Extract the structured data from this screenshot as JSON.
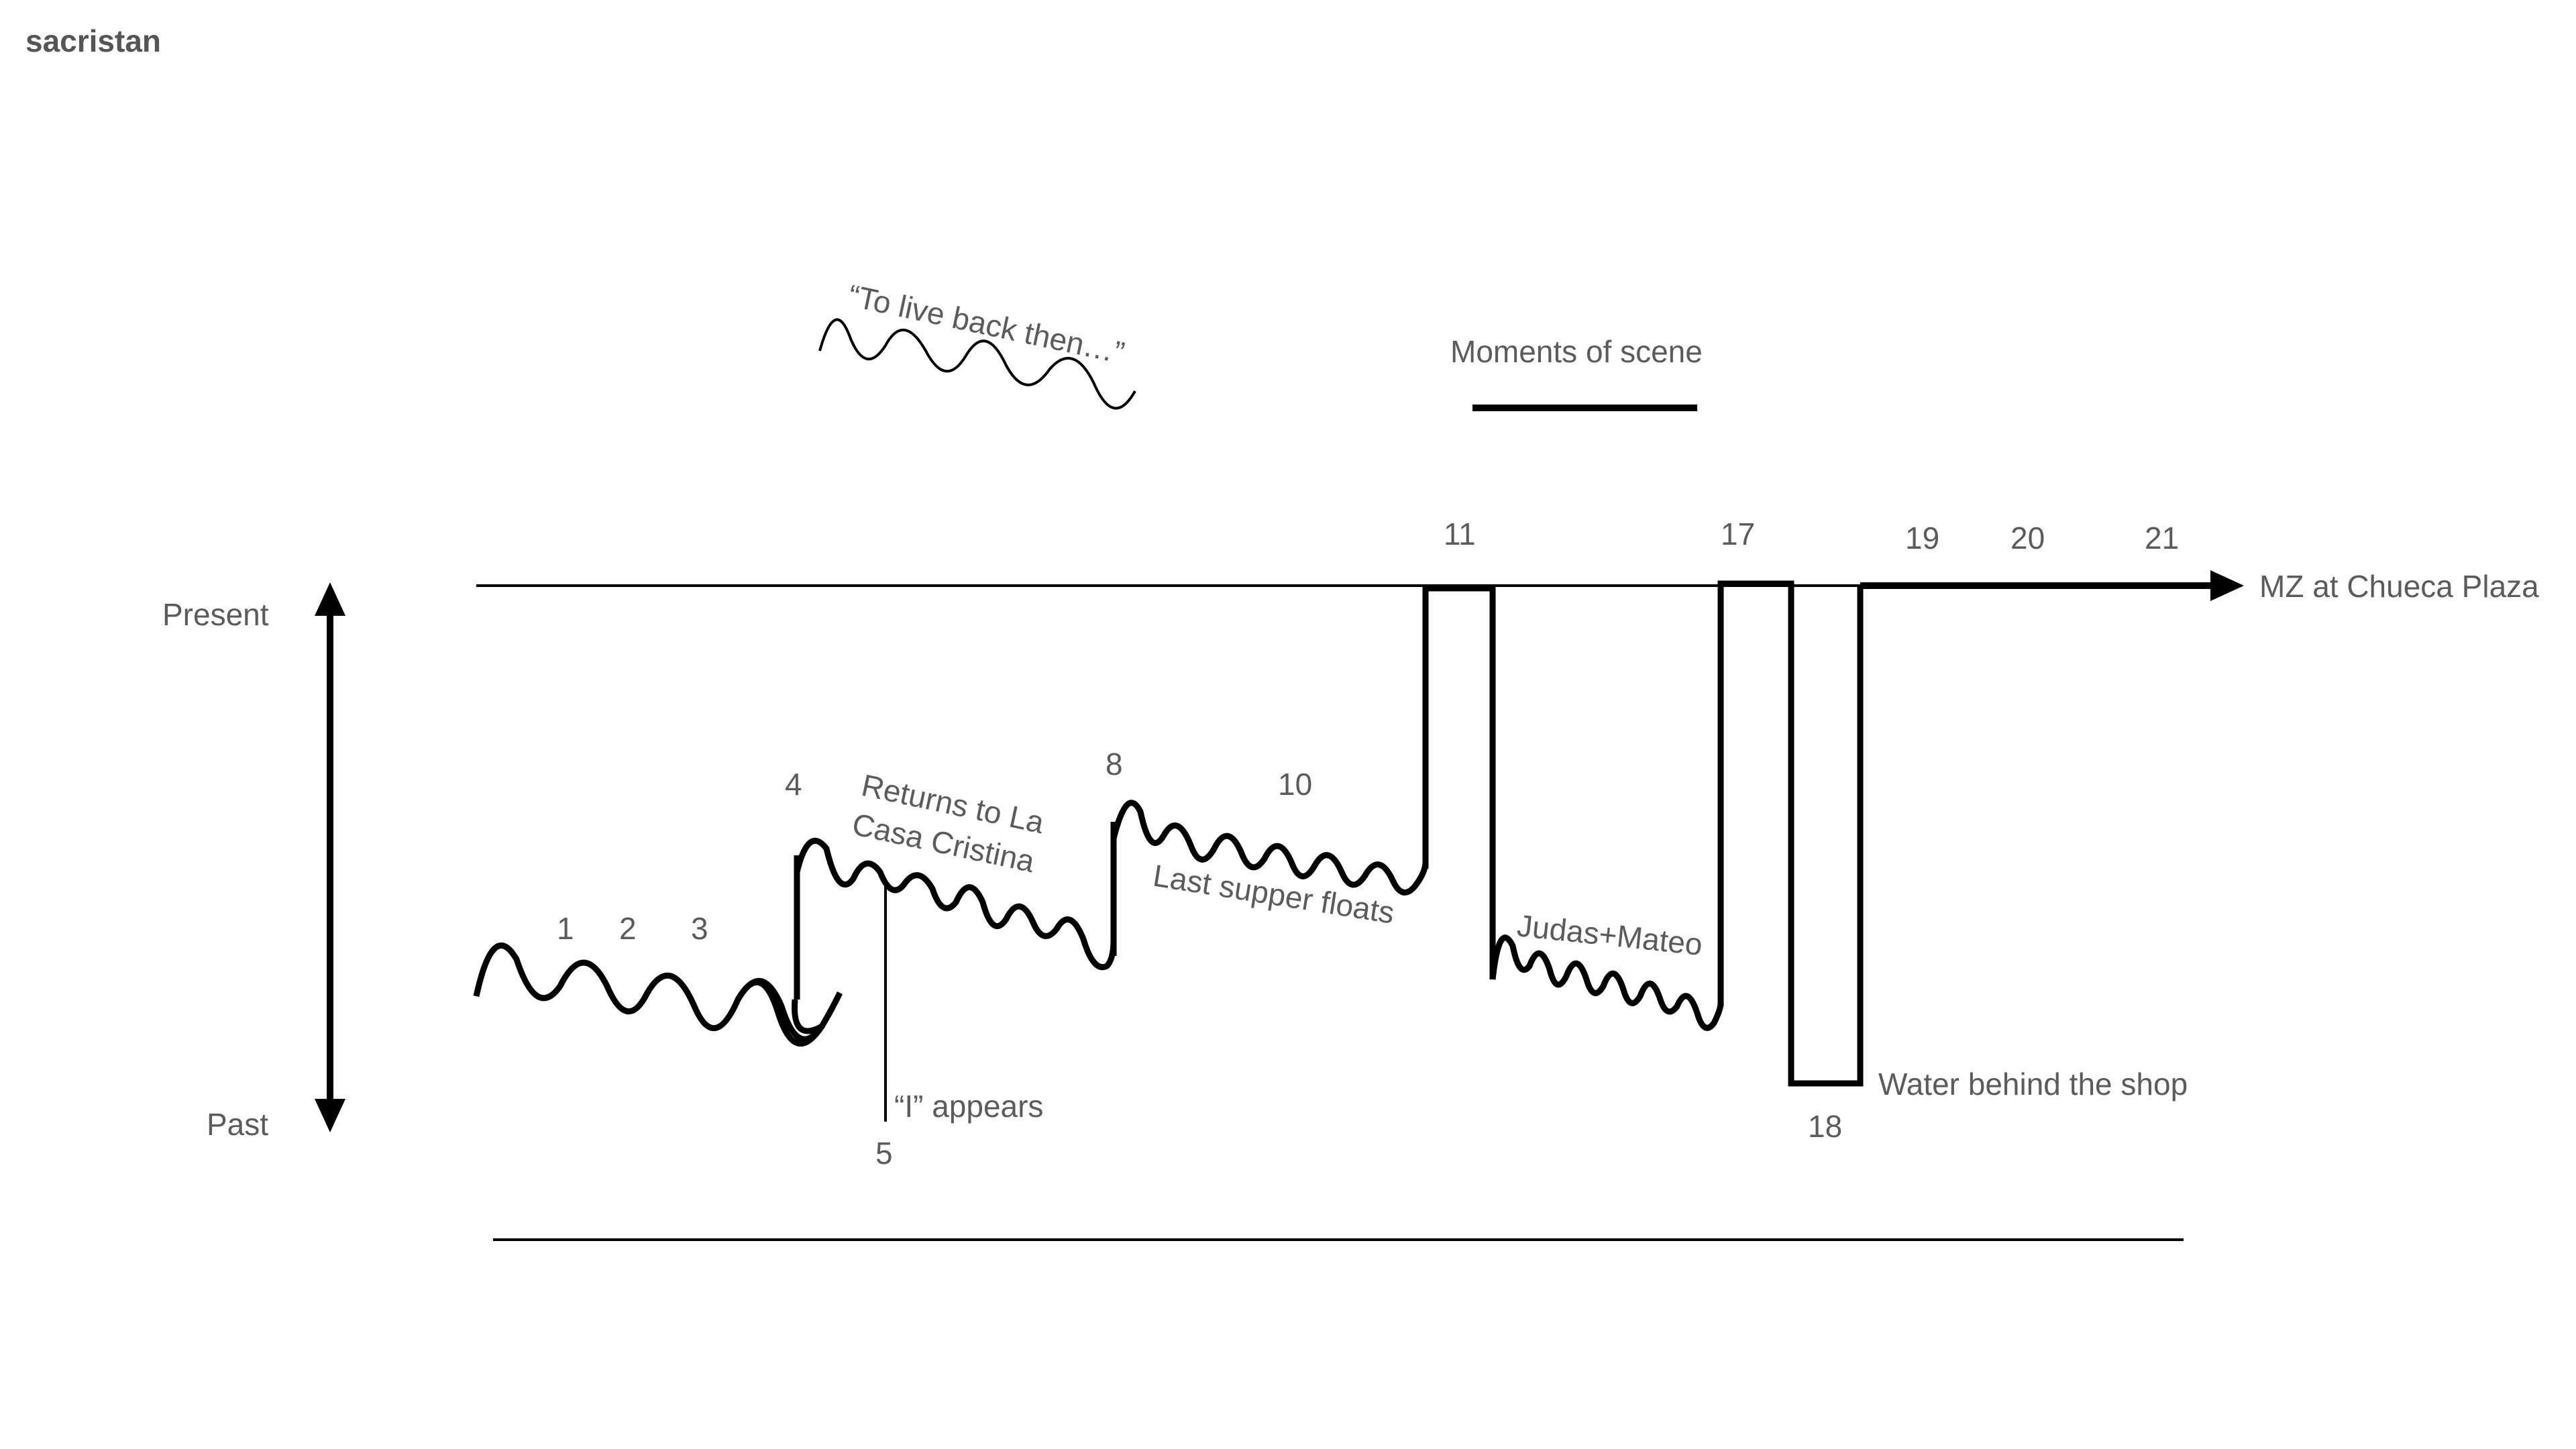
{
  "title": "sacristan",
  "axis": {
    "present_label": "Present",
    "past_label": "Past"
  },
  "legend": {
    "wavy_label": "“To live back then…”",
    "solid_label": "Moments of scene"
  },
  "scene_numbers": {
    "s1": "1",
    "s2": "2",
    "s3": "3",
    "s4": "4",
    "s5": "5",
    "s8": "8",
    "s10": "10",
    "s11": "11",
    "s17": "17",
    "s18": "18",
    "s19": "19",
    "s20": "20",
    "s21": "21"
  },
  "annotations": {
    "returns_line1": "Returns to La",
    "returns_line2": "Casa Cristina",
    "i_appears": "“I” appears",
    "last_supper": "Last supper floats",
    "judas": "Judas+Mateo",
    "water": "Water behind the shop",
    "endpoint": "MZ at Chueca Plaza"
  },
  "style": {
    "line_color": "#000000",
    "text_color": "#5b5b5b"
  }
}
